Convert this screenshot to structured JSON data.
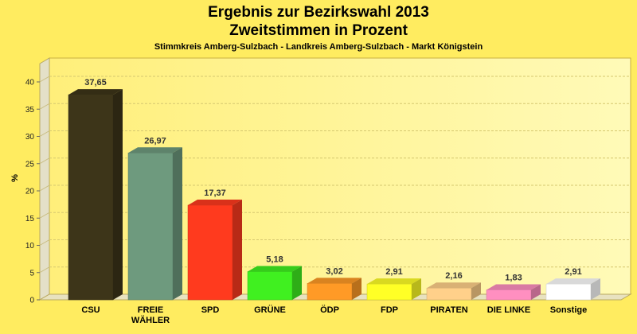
{
  "chart_data": {
    "type": "bar",
    "title": "Ergebnis zur Bezirkswahl 2013",
    "subtitle": "Zweitstimmen in Prozent",
    "caption": "Stimmkreis Amberg-Sulzbach - Landkreis Amberg-Sulzbach - Markt Königstein",
    "ylabel": "%",
    "ylim": [
      0,
      40
    ],
    "yticks": [
      "0",
      "5",
      "10",
      "15",
      "20",
      "25",
      "30",
      "35",
      "40"
    ],
    "categories": [
      [
        "CSU"
      ],
      [
        "FREIE",
        "WÄHLER"
      ],
      [
        "SPD"
      ],
      [
        "GRÜNE"
      ],
      [
        "ÖDP"
      ],
      [
        "FDP"
      ],
      [
        "PIRATEN"
      ],
      [
        "DIE LINKE"
      ],
      [
        "Sonstige"
      ]
    ],
    "values": [
      37.65,
      26.97,
      17.37,
      5.18,
      3.02,
      2.91,
      2.16,
      1.83,
      2.91
    ],
    "value_labels": [
      "37,65",
      "26,97",
      "17,37",
      "5,18",
      "3,02",
      "2,91",
      "2,16",
      "1,83",
      "2,91"
    ],
    "colors": [
      "#3d3519",
      "#6e9a7e",
      "#ff3a1e",
      "#40f020",
      "#ff9a26",
      "#ffff26",
      "#ffd08a",
      "#ff8fc0",
      "#ffffff"
    ],
    "grid": true
  }
}
